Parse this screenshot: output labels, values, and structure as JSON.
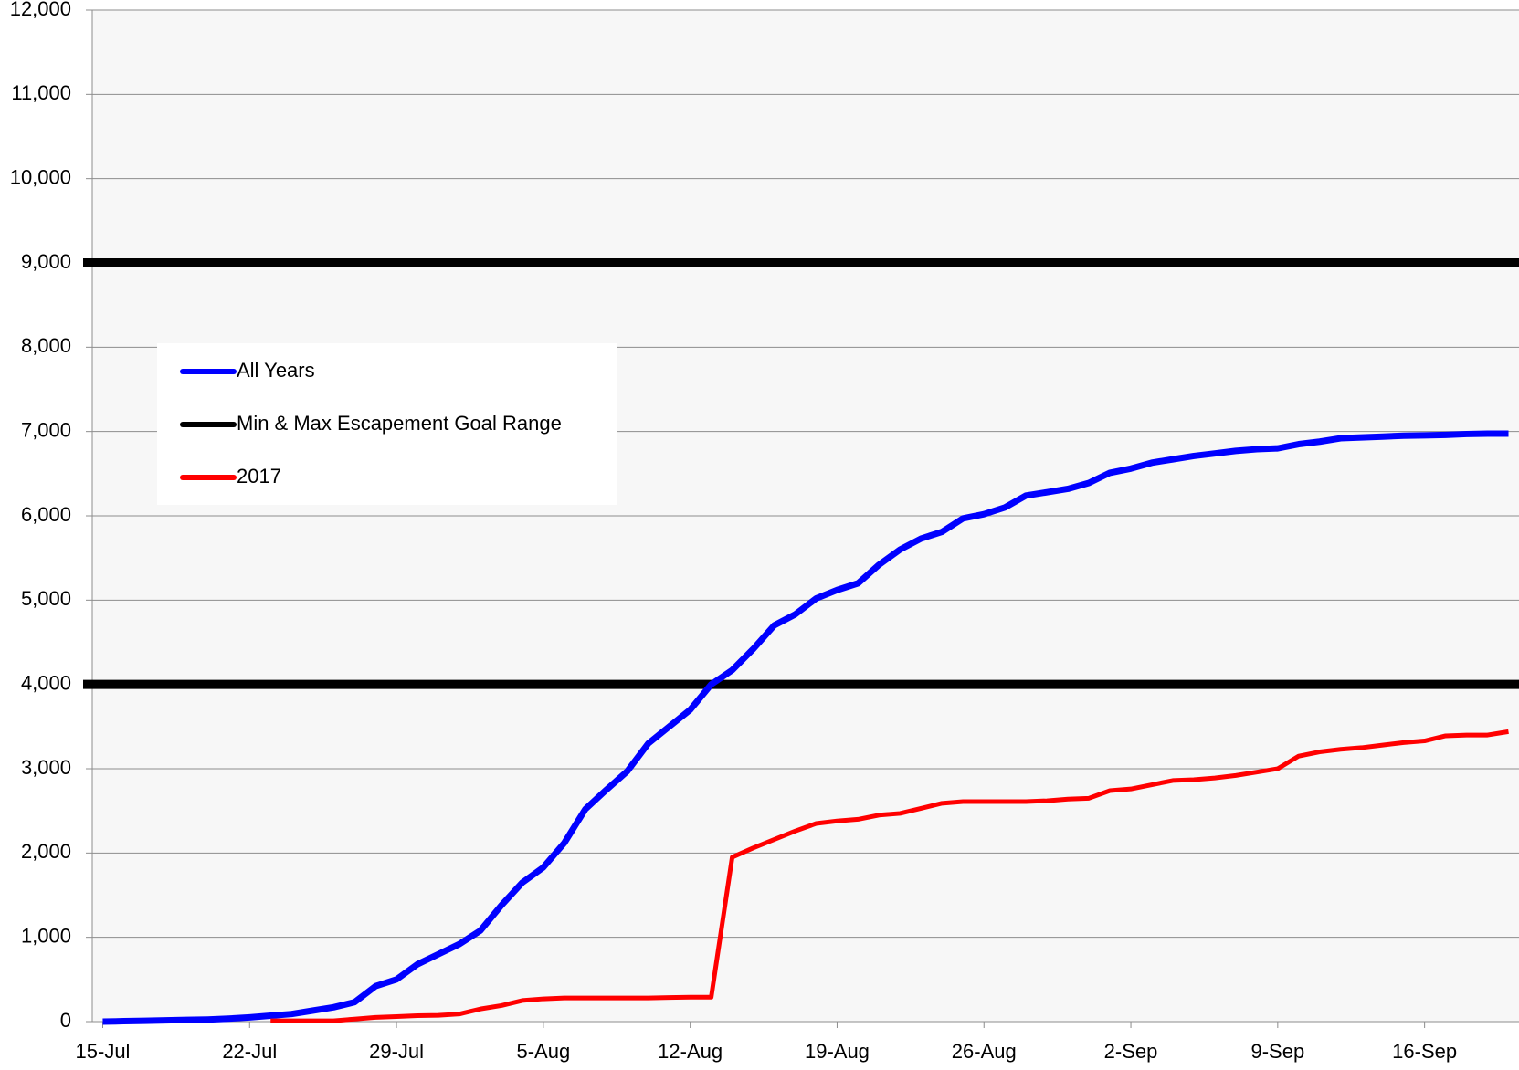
{
  "chart_data": {
    "type": "line",
    "categories": [
      "15-Jul",
      null,
      null,
      null,
      null,
      null,
      null,
      "22-Jul",
      null,
      null,
      null,
      null,
      null,
      null,
      "29-Jul",
      null,
      null,
      null,
      null,
      null,
      null,
      "5-Aug",
      null,
      null,
      null,
      null,
      null,
      null,
      "12-Aug",
      null,
      null,
      null,
      null,
      null,
      null,
      "19-Aug",
      null,
      null,
      null,
      null,
      null,
      null,
      "26-Aug",
      null,
      null,
      null,
      null,
      null,
      null,
      "2-Sep",
      null,
      null,
      null,
      null,
      null,
      null,
      "9-Sep",
      null,
      null,
      null,
      null,
      null,
      null,
      "16-Sep",
      null,
      null,
      null,
      null
    ],
    "series": [
      {
        "name": "All Years",
        "color": "#0000ff",
        "values": [
          0,
          5,
          10,
          15,
          20,
          25,
          35,
          50,
          70,
          90,
          130,
          170,
          230,
          420,
          500,
          680,
          800,
          920,
          1080,
          1380,
          1650,
          1830,
          2120,
          2520,
          2750,
          2970,
          3300,
          3500,
          3700,
          4000,
          4170,
          4420,
          4700,
          4830,
          5020,
          5120,
          5200,
          5420,
          5600,
          5730,
          5810,
          5970,
          6020,
          6100,
          6240,
          6280,
          6320,
          6390,
          6510,
          6560,
          6630,
          6670,
          6710,
          6740,
          6770,
          6790,
          6800,
          6850,
          6880,
          6920,
          6930,
          6940,
          6950,
          6955,
          6960,
          6970,
          6975,
          6975
        ]
      },
      {
        "name": "2017",
        "color": "#ff0000",
        "values": [
          null,
          null,
          null,
          null,
          null,
          null,
          null,
          null,
          10,
          10,
          10,
          10,
          30,
          50,
          60,
          70,
          75,
          90,
          150,
          190,
          250,
          270,
          280,
          280,
          280,
          280,
          280,
          285,
          290,
          290,
          1950,
          2060,
          2160,
          2260,
          2350,
          2380,
          2400,
          2450,
          2470,
          2530,
          2590,
          2610,
          2610,
          2610,
          2610,
          2620,
          2640,
          2650,
          2740,
          2760,
          2810,
          2860,
          2870,
          2890,
          2920,
          2960,
          3000,
          3150,
          3200,
          3230,
          3250,
          3280,
          3310,
          3330,
          3390,
          3400,
          3400,
          3440
        ]
      }
    ],
    "goal_lines": {
      "name": "Min & Max Escapement Goal Range",
      "color": "#000000",
      "values": [
        4000,
        9000
      ]
    },
    "ylim": [
      0,
      12000
    ],
    "yticks": [
      0,
      {
        "value": 1000,
        "label": "1,000"
      },
      {
        "value": 2000,
        "label": "2,000"
      },
      {
        "value": 3000,
        "label": "3,000"
      },
      {
        "value": 4000,
        "label": "4,000"
      },
      {
        "value": 5000,
        "label": "5,000"
      },
      {
        "value": 6000,
        "label": "6,000"
      },
      {
        "value": 7000,
        "label": "7,000"
      },
      {
        "value": 8000,
        "label": "8,000"
      },
      {
        "value": 9000,
        "label": "9,000"
      },
      {
        "value": 10000,
        "label": "10,000"
      },
      {
        "value": 11000,
        "label": "11,000"
      },
      {
        "value": 12000,
        "label": "12,000"
      }
    ],
    "grid": true
  }
}
